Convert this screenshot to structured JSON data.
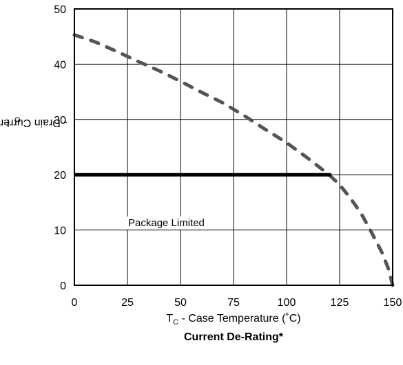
{
  "chart_data": {
    "type": "line",
    "title": "Current De-Rating*",
    "xlabel": {
      "main": "T",
      "sub": "C",
      "rest": " -  Case Temperature (˚C)"
    },
    "ylabel": {
      "main": "I",
      "sub": "D",
      "rest": " - Drain Current (A)"
    },
    "xlim": [
      0,
      150
    ],
    "ylim": [
      0,
      50
    ],
    "x_ticks": [
      0,
      25,
      50,
      75,
      100,
      125,
      150
    ],
    "y_ticks": [
      0,
      10,
      20,
      30,
      40,
      50
    ],
    "grid": true,
    "series": [
      {
        "style": "dashed",
        "color": "#555555",
        "points": [
          [
            0,
            45.3
          ],
          [
            10,
            44
          ],
          [
            20,
            42.3
          ],
          [
            30,
            40.5
          ],
          [
            40,
            38.8
          ],
          [
            50,
            36.9
          ],
          [
            60,
            34.9
          ],
          [
            70,
            33.0
          ],
          [
            80,
            30.7
          ],
          [
            90,
            28.2
          ],
          [
            100,
            25.8
          ],
          [
            110,
            23.0
          ],
          [
            120,
            20.0
          ],
          [
            125,
            18.2
          ],
          [
            130,
            15.8
          ],
          [
            135,
            13.1
          ],
          [
            140,
            9.6
          ],
          [
            145,
            5.9
          ],
          [
            148,
            3.0
          ],
          [
            150,
            0
          ]
        ]
      },
      {
        "style": "solid",
        "color": "#000000",
        "points": [
          [
            0,
            20
          ],
          [
            121,
            20
          ]
        ]
      }
    ],
    "annotations": [
      {
        "text": "Package Limited"
      }
    ]
  }
}
